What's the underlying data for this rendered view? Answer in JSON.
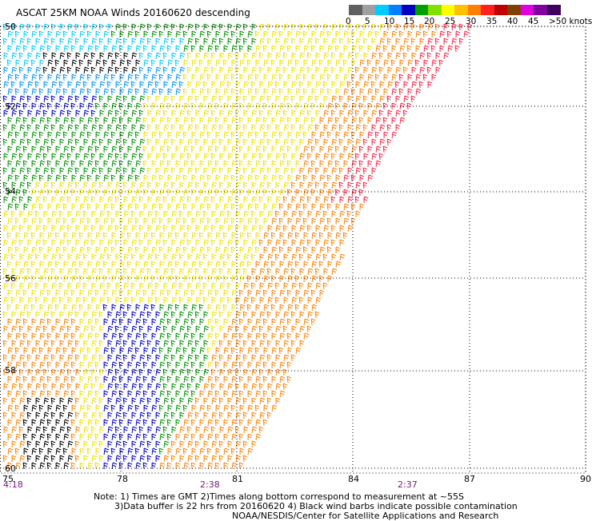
{
  "title": "ASCAT 25KM NOAA Winds 20160620 descending",
  "legend": {
    "unit_label": ">50 knots",
    "ticks": [
      "0",
      "5",
      "10",
      "15",
      "20",
      "25",
      "30",
      "35",
      "40",
      "45"
    ],
    "colors": [
      "#606060",
      "#a0a0a0",
      "#00ccff",
      "#0080ff",
      "#0000c0",
      "#00a000",
      "#80e000",
      "#ffff00",
      "#ffc000",
      "#ff8000",
      "#ff2020",
      "#c00000",
      "#804000",
      "#e000e0",
      "#8000a0",
      "#400060"
    ]
  },
  "map": {
    "lat_labels": [
      "50",
      "52",
      "54",
      "56",
      "58",
      "60"
    ],
    "lon_labels": [
      "75",
      "78",
      "81",
      "84",
      "87",
      "90"
    ],
    "time_labels": [
      "4:18",
      "2:38",
      "2:37"
    ],
    "barb_colors": {
      "black": "#000000",
      "gray": "#808080",
      "cyan": "#00c8ff",
      "lightblue": "#0090ff",
      "blue": "#0000c8",
      "green": "#009000",
      "lightgreen": "#60d000",
      "yellow": "#f0e000",
      "gold": "#ffc000",
      "orange": "#ff8000",
      "red": "#ff2040",
      "darkred": "#c00020"
    }
  },
  "notes": {
    "line1": "Note: 1) Times are GMT 2)Times along bottom correspond to measurement at ~55S",
    "line2": "3)Data buffer is 22 hrs from 20160620 4) Black wind barbs indicate possible contamination",
    "line3": "NOAA/NESDIS/Center for Satellite Applications and Research"
  }
}
